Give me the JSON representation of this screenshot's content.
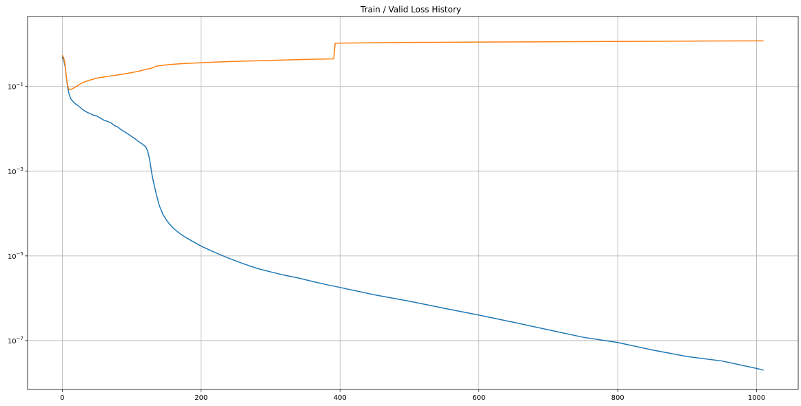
{
  "chart_data": {
    "type": "line",
    "title": "Train / Valid Loss History",
    "xlabel": "",
    "ylabel": "",
    "yscale": "log",
    "grid": true,
    "xlim": [
      -50,
      1060
    ],
    "ylim": [
      7e-09,
      4.5
    ],
    "xticks": [
      0,
      200,
      400,
      600,
      800,
      1000
    ],
    "xtick_labels": [
      "0",
      "200",
      "400",
      "600",
      "800",
      "1000"
    ],
    "yticks": [
      1e-07,
      1e-05,
      0.001,
      0.1
    ],
    "ytick_labels": [
      {
        "base": "10",
        "exp": "−7"
      },
      {
        "base": "10",
        "exp": "−5"
      },
      {
        "base": "10",
        "exp": "−3"
      },
      {
        "base": "10",
        "exp": "−1"
      }
    ],
    "series": [
      {
        "color": "#1f77b4",
        "x": [
          0,
          2,
          4,
          6,
          8,
          10,
          12,
          15,
          18,
          22,
          26,
          30,
          35,
          40,
          45,
          50,
          55,
          60,
          65,
          70,
          75,
          80,
          85,
          90,
          95,
          100,
          105,
          110,
          115,
          120,
          123,
          126,
          128,
          130,
          133,
          136,
          140,
          145,
          150,
          155,
          160,
          170,
          180,
          190,
          200,
          220,
          240,
          260,
          280,
          300,
          320,
          340,
          360,
          380,
          400,
          450,
          500,
          550,
          600,
          650,
          700,
          750,
          800,
          850,
          900,
          950,
          1000,
          1010
        ],
        "y": [
          0.5,
          0.42,
          0.3,
          0.16,
          0.09,
          0.065,
          0.052,
          0.045,
          0.04,
          0.036,
          0.032,
          0.028,
          0.025,
          0.023,
          0.021,
          0.02,
          0.018,
          0.016,
          0.015,
          0.014,
          0.012,
          0.011,
          0.0095,
          0.0085,
          0.0075,
          0.0066,
          0.0058,
          0.005,
          0.0044,
          0.0038,
          0.003,
          0.0018,
          0.0011,
          0.0007,
          0.00042,
          0.00026,
          0.00015,
          9.5e-05,
          7e-05,
          5.5e-05,
          4.5e-05,
          3.3e-05,
          2.6e-05,
          2.1e-05,
          1.7e-05,
          1.2e-05,
          8.8e-06,
          6.6e-06,
          5.1e-06,
          4.2e-06,
          3.5e-06,
          3e-06,
          2.5e-06,
          2.1e-06,
          1.8e-06,
          1.2e-06,
          8.5e-07,
          5.8e-07,
          4e-07,
          2.7e-07,
          1.8e-07,
          1.2e-07,
          9e-08,
          6e-08,
          4.2e-08,
          3.3e-08,
          2.2e-08,
          2e-08
        ]
      },
      {
        "color": "#ff7f0e",
        "x": [
          0,
          2,
          4,
          6,
          8,
          10,
          12,
          14,
          18,
          22,
          26,
          30,
          40,
          50,
          60,
          70,
          80,
          90,
          100,
          110,
          120,
          130,
          135,
          140,
          150,
          160,
          170,
          180,
          200,
          220,
          240,
          260,
          280,
          300,
          320,
          340,
          360,
          380,
          391,
          393,
          400,
          450,
          500,
          600,
          700,
          800,
          900,
          1000,
          1010
        ],
        "y": [
          0.55,
          0.48,
          0.33,
          0.16,
          0.1,
          0.085,
          0.085,
          0.088,
          0.095,
          0.105,
          0.115,
          0.125,
          0.142,
          0.158,
          0.168,
          0.178,
          0.188,
          0.2,
          0.213,
          0.23,
          0.252,
          0.275,
          0.3,
          0.31,
          0.325,
          0.335,
          0.345,
          0.352,
          0.365,
          0.377,
          0.387,
          0.397,
          0.405,
          0.415,
          0.423,
          0.432,
          0.44,
          0.447,
          0.45,
          1.05,
          1.06,
          1.08,
          1.1,
          1.12,
          1.14,
          1.16,
          1.18,
          1.2,
          1.2
        ]
      }
    ]
  }
}
